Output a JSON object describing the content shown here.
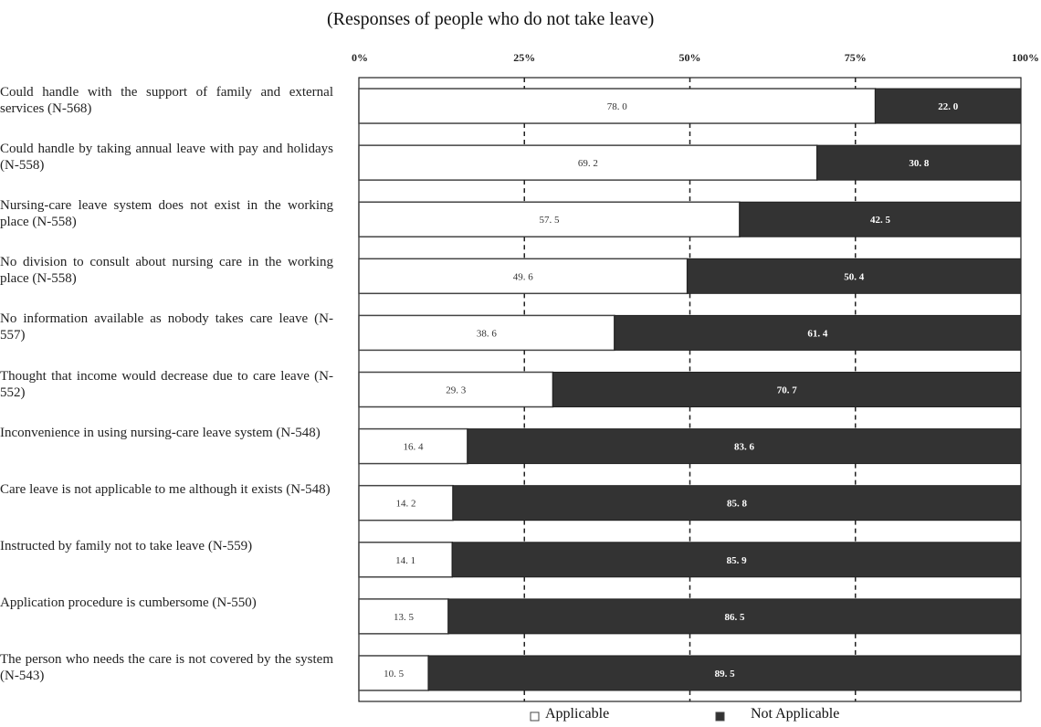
{
  "chart_data": {
    "type": "bar",
    "stacked": true,
    "orientation": "horizontal",
    "subtitle": "(Responses of people who do not take leave)",
    "x_ticks": [
      "0%",
      "25%",
      "50%",
      "75%",
      "100%"
    ],
    "xlim": [
      0,
      100
    ],
    "grid": "dashed vertical at 25, 50, 75",
    "legend_position": "bottom",
    "categories": [
      "Could handle with the support of family and external services (N-568)",
      "Could handle by taking annual leave with pay and holidays (N-558)",
      "Nursing-care leave system does not exist in the working place (N-558)",
      "No division to consult about nursing care in the working place (N-558)",
      "No information available as nobody takes care leave (N-557)",
      "Thought that income would decrease due to care leave (N-552)",
      "Inconvenience in using nursing-care leave system (N-548)",
      "Care leave is not applicable to me although it exists (N-548)",
      "Instructed by family not to take leave (N-559)",
      "Application procedure is cumbersome (N-550)",
      "The person who needs the care is not covered by the system (N-543)"
    ],
    "series": [
      {
        "name": "Applicable",
        "color": "#ffffff",
        "values": [
          78.0,
          69.2,
          57.5,
          49.6,
          38.6,
          29.3,
          16.4,
          14.2,
          14.1,
          13.5,
          10.5
        ],
        "labels": [
          "78. 0",
          "69. 2",
          "57. 5",
          "49. 6",
          "38. 6",
          "29. 3",
          "16. 4",
          "14. 2",
          "14. 1",
          "13. 5",
          "10. 5"
        ]
      },
      {
        "name": "Not Applicable",
        "color": "#333333",
        "values": [
          22.0,
          30.8,
          42.5,
          50.4,
          61.4,
          70.7,
          83.6,
          85.8,
          85.9,
          86.5,
          89.5
        ],
        "labels": [
          "22. 0",
          "30. 8",
          "42. 5",
          "50. 4",
          "61. 4",
          "70. 7",
          "83. 6",
          "85. 8",
          "85. 9",
          "86. 5",
          "89. 5"
        ]
      }
    ]
  }
}
